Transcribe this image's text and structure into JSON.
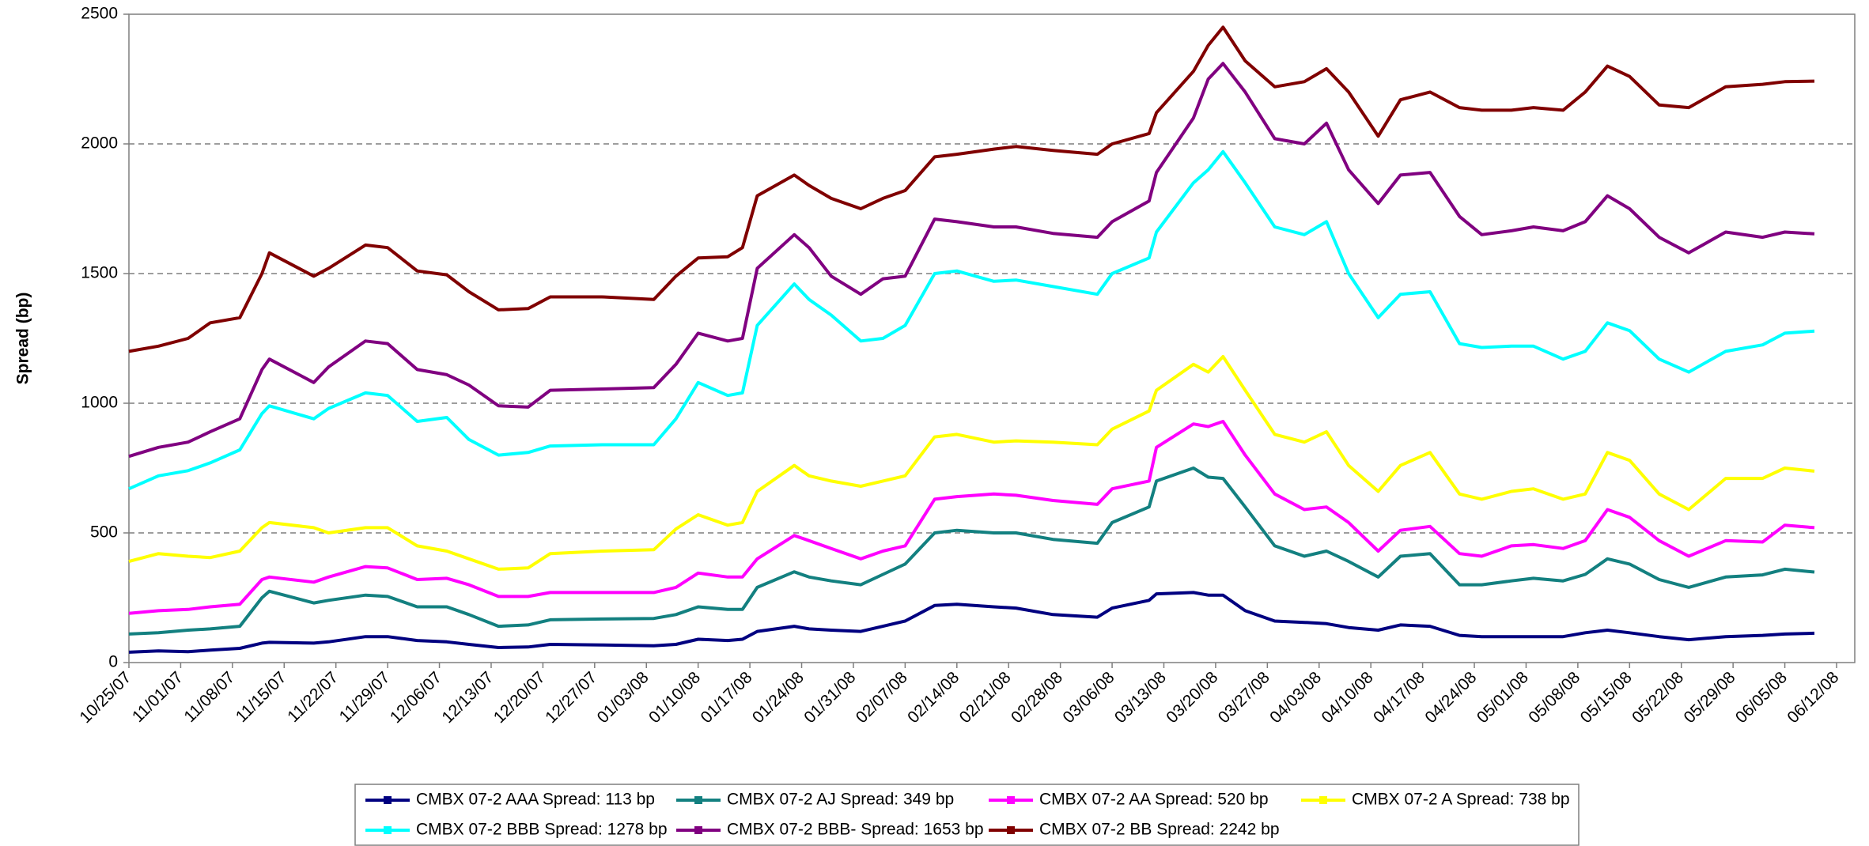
{
  "chart_data": {
    "type": "line",
    "ylabel": "Spread (bp)",
    "x": [
      "10/25/07",
      "10/29/07",
      "11/02/07",
      "11/05/07",
      "11/09/07",
      "11/12/07",
      "11/13/07",
      "11/19/07",
      "11/21/07",
      "11/26/07",
      "11/29/07",
      "12/03/07",
      "12/07/07",
      "12/10/07",
      "12/14/07",
      "12/18/07",
      "12/21/07",
      "12/28/07",
      "01/04/08",
      "01/07/08",
      "01/10/08",
      "01/14/08",
      "01/16/08",
      "01/18/08",
      "01/23/08",
      "01/25/08",
      "01/28/08",
      "02/01/08",
      "02/04/08",
      "02/07/08",
      "02/11/08",
      "02/14/08",
      "02/19/08",
      "02/22/08",
      "02/27/08",
      "03/04/08",
      "03/06/08",
      "03/11/08",
      "03/12/08",
      "03/17/08",
      "03/19/08",
      "03/21/08",
      "03/24/08",
      "03/28/08",
      "04/01/08",
      "04/04/08",
      "04/07/08",
      "04/11/08",
      "04/14/08",
      "04/18/08",
      "04/22/08",
      "04/25/08",
      "04/29/08",
      "05/02/08",
      "05/06/08",
      "05/09/08",
      "05/12/08",
      "05/15/08",
      "05/19/08",
      "05/23/08",
      "05/28/08",
      "06/02/08",
      "06/05/08",
      "06/09/08"
    ],
    "series": [
      {
        "name": "CMBX 07-2 AAA Spread: 113 bp",
        "color": "#000080",
        "values": [
          40,
          45,
          42,
          48,
          55,
          75,
          78,
          75,
          80,
          100,
          100,
          85,
          80,
          70,
          58,
          60,
          70,
          68,
          65,
          70,
          90,
          85,
          90,
          120,
          140,
          130,
          125,
          120,
          140,
          160,
          220,
          225,
          215,
          210,
          185,
          175,
          210,
          240,
          265,
          270,
          260,
          260,
          200,
          160,
          155,
          150,
          135,
          125,
          145,
          140,
          105,
          100,
          100,
          100,
          100,
          115,
          125,
          115,
          100,
          88,
          100,
          105,
          110,
          113
        ]
      },
      {
        "name": "CMBX 07-2 AJ Spread: 349 bp",
        "color": "#138080",
        "values": [
          110,
          115,
          125,
          130,
          140,
          250,
          275,
          230,
          240,
          260,
          255,
          215,
          215,
          185,
          140,
          145,
          165,
          168,
          170,
          185,
          215,
          205,
          205,
          290,
          350,
          330,
          315,
          300,
          340,
          380,
          500,
          510,
          500,
          500,
          475,
          460,
          540,
          600,
          700,
          750,
          715,
          710,
          600,
          450,
          410,
          430,
          390,
          330,
          410,
          420,
          300,
          300,
          315,
          325,
          315,
          340,
          400,
          380,
          320,
          290,
          330,
          338,
          360,
          349
        ]
      },
      {
        "name": "CMBX 07-2 AA Spread: 520 bp",
        "color": "#ff00ff",
        "values": [
          190,
          200,
          205,
          215,
          225,
          320,
          330,
          310,
          330,
          370,
          365,
          320,
          325,
          300,
          255,
          255,
          270,
          270,
          270,
          290,
          345,
          330,
          330,
          400,
          490,
          470,
          440,
          400,
          430,
          450,
          630,
          640,
          650,
          645,
          625,
          610,
          670,
          700,
          830,
          920,
          910,
          930,
          800,
          650,
          590,
          600,
          540,
          430,
          510,
          525,
          420,
          410,
          450,
          455,
          440,
          470,
          590,
          560,
          470,
          410,
          470,
          465,
          530,
          520
        ]
      },
      {
        "name": "CMBX 07-2 A Spread: 738 bp",
        "color": "#ffff00",
        "values": [
          390,
          420,
          410,
          405,
          430,
          520,
          540,
          520,
          500,
          520,
          520,
          450,
          430,
          400,
          360,
          365,
          420,
          430,
          435,
          515,
          570,
          530,
          540,
          660,
          760,
          720,
          700,
          680,
          700,
          720,
          870,
          880,
          850,
          855,
          850,
          840,
          900,
          970,
          1050,
          1150,
          1120,
          1180,
          1050,
          880,
          850,
          890,
          760,
          660,
          760,
          810,
          650,
          630,
          660,
          670,
          630,
          650,
          810,
          780,
          650,
          590,
          710,
          710,
          750,
          738
        ]
      },
      {
        "name": "CMBX 07-2 BBB Spread: 1278 bp",
        "color": "#00ffff",
        "values": [
          670,
          720,
          740,
          770,
          820,
          960,
          990,
          940,
          980,
          1040,
          1030,
          930,
          945,
          860,
          800,
          810,
          835,
          840,
          840,
          940,
          1080,
          1030,
          1040,
          1300,
          1460,
          1400,
          1340,
          1240,
          1250,
          1300,
          1500,
          1510,
          1470,
          1475,
          1450,
          1420,
          1500,
          1560,
          1660,
          1850,
          1900,
          1970,
          1850,
          1680,
          1650,
          1700,
          1500,
          1330,
          1420,
          1430,
          1230,
          1215,
          1220,
          1220,
          1170,
          1200,
          1310,
          1280,
          1170,
          1120,
          1200,
          1225,
          1270,
          1278
        ]
      },
      {
        "name": "CMBX 07-2 BBB- Spread: 1653 bp",
        "color": "#800080",
        "values": [
          795,
          830,
          850,
          890,
          940,
          1130,
          1170,
          1080,
          1140,
          1240,
          1230,
          1130,
          1110,
          1070,
          990,
          985,
          1050,
          1055,
          1060,
          1150,
          1270,
          1240,
          1250,
          1520,
          1650,
          1600,
          1490,
          1420,
          1480,
          1490,
          1710,
          1700,
          1680,
          1680,
          1655,
          1640,
          1700,
          1780,
          1890,
          2100,
          2250,
          2310,
          2200,
          2020,
          2000,
          2080,
          1900,
          1770,
          1880,
          1890,
          1720,
          1650,
          1665,
          1680,
          1665,
          1700,
          1800,
          1750,
          1640,
          1580,
          1660,
          1640,
          1660,
          1653
        ]
      },
      {
        "name": "CMBX 07-2 BB Spread: 2242 bp",
        "color": "#800000",
        "values": [
          1200,
          1220,
          1250,
          1310,
          1330,
          1500,
          1580,
          1490,
          1520,
          1610,
          1600,
          1510,
          1495,
          1430,
          1360,
          1365,
          1410,
          1410,
          1400,
          1490,
          1560,
          1565,
          1600,
          1800,
          1880,
          1840,
          1790,
          1750,
          1790,
          1820,
          1950,
          1960,
          1980,
          1990,
          1975,
          1960,
          2000,
          2040,
          2120,
          2280,
          2380,
          2450,
          2320,
          2220,
          2240,
          2290,
          2200,
          2030,
          2170,
          2200,
          2140,
          2130,
          2130,
          2140,
          2130,
          2200,
          2300,
          2260,
          2150,
          2140,
          2220,
          2230,
          2240,
          2242
        ]
      }
    ],
    "xlim": [
      "10/25/07",
      "06/12/08"
    ],
    "xticks": [
      "10/25/07",
      "11/01/07",
      "11/08/07",
      "11/15/07",
      "11/22/07",
      "11/29/07",
      "12/06/07",
      "12/13/07",
      "12/20/07",
      "12/27/07",
      "01/03/08",
      "01/10/08",
      "01/17/08",
      "01/24/08",
      "01/31/08",
      "02/07/08",
      "02/14/08",
      "02/21/08",
      "02/28/08",
      "03/06/08",
      "03/13/08",
      "03/20/08",
      "03/27/08",
      "04/03/08",
      "04/10/08",
      "04/17/08",
      "04/24/08",
      "05/01/08",
      "05/08/08",
      "05/15/08",
      "05/22/08",
      "05/29/08",
      "06/05/08",
      "06/12/08"
    ],
    "ylim": [
      0,
      2500
    ],
    "yticks": [
      0,
      500,
      1000,
      1500,
      2000,
      2500
    ],
    "grid": true,
    "legend": "bottom"
  }
}
